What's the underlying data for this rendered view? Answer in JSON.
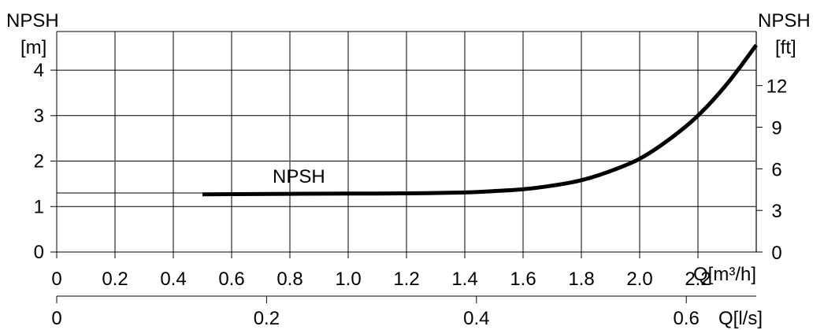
{
  "chart_data": {
    "type": "line",
    "left_axis": {
      "title_line1": "NPSH",
      "title_line2": "[m]",
      "ticks": [
        "0",
        "1",
        "2",
        "3",
        "4"
      ],
      "range": [
        0,
        4.85
      ]
    },
    "right_axis": {
      "title_line1": "NPSH",
      "title_line2": "[ft]",
      "ticks": [
        "0",
        "3",
        "6",
        "9",
        "12"
      ],
      "range": [
        0,
        15.9
      ]
    },
    "bottom_axis": {
      "label": "Q[m³/h]",
      "ticks": [
        "0",
        "0.2",
        "0.4",
        "0.6",
        "0.8",
        "1.0",
        "1.2",
        "1.4",
        "1.6",
        "1.8",
        "2.0",
        "2.2"
      ],
      "range": [
        0,
        2.4
      ]
    },
    "secondary_bottom_axis": {
      "label": "Q[l/s]",
      "ticks": [
        "0",
        "0.2",
        "0.4",
        "0.6"
      ]
    },
    "series": [
      {
        "name": "NPSH",
        "x": [
          0.5,
          0.8,
          1.0,
          1.2,
          1.4,
          1.5,
          1.6,
          1.7,
          1.8,
          1.9,
          2.0,
          2.1,
          2.2,
          2.3,
          2.4
        ],
        "y": [
          1.27,
          1.28,
          1.285,
          1.29,
          1.31,
          1.34,
          1.38,
          1.46,
          1.58,
          1.78,
          2.05,
          2.47,
          3.0,
          3.7,
          4.55
        ]
      }
    ],
    "reference_line_y": 1.3
  }
}
